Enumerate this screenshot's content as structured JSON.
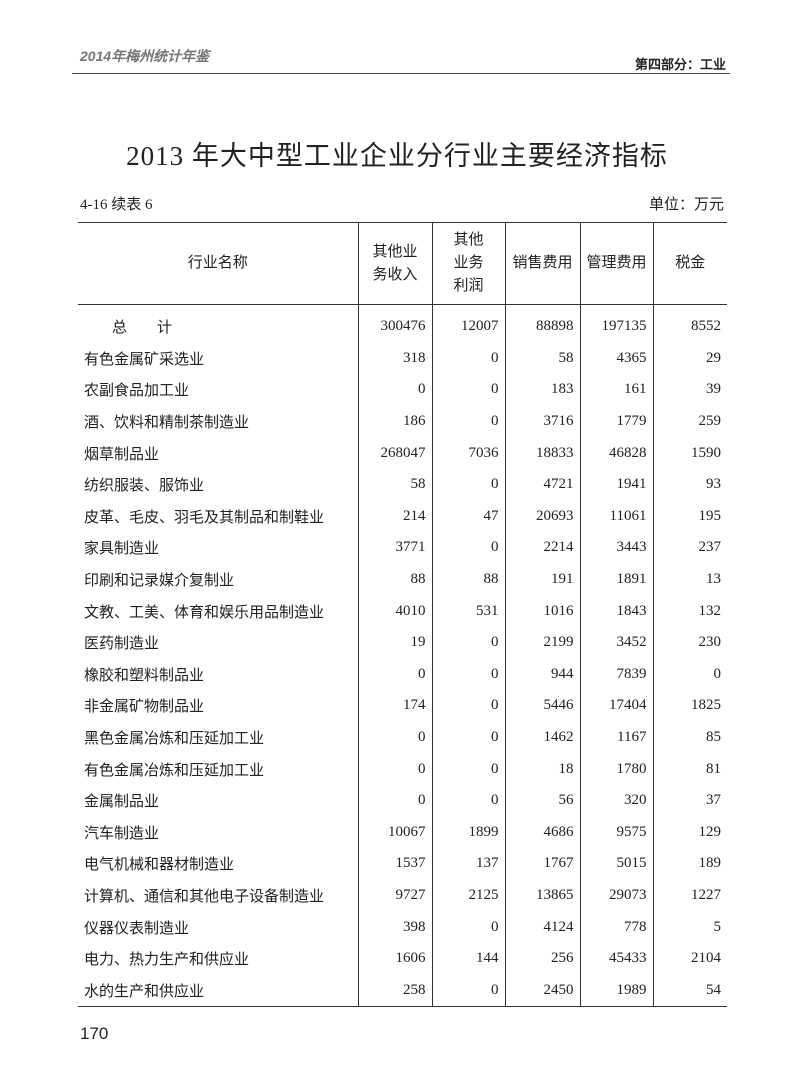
{
  "header": {
    "book": "2014年梅州统计年鉴",
    "section": "第四部分：工业"
  },
  "title": "2013 年大中型工业企业分行业主要经济指标",
  "subtitle": {
    "table_no": "4-16 续表 6",
    "unit": "单位：万元"
  },
  "table": {
    "columns": [
      "行业名称",
      "其他业务收入",
      "其他业务利润",
      "销售费用",
      "管理费用",
      "税金"
    ],
    "rows": [
      [
        "总　　计",
        300476,
        12007,
        88898,
        197135,
        8552
      ],
      [
        "有色金属矿采选业",
        318,
        0,
        58,
        4365,
        29
      ],
      [
        "农副食品加工业",
        0,
        0,
        183,
        161,
        39
      ],
      [
        "酒、饮料和精制茶制造业",
        186,
        0,
        3716,
        1779,
        259
      ],
      [
        "烟草制品业",
        268047,
        7036,
        18833,
        46828,
        1590
      ],
      [
        "纺织服装、服饰业",
        58,
        0,
        4721,
        1941,
        93
      ],
      [
        "皮革、毛皮、羽毛及其制品和制鞋业",
        214,
        47,
        20693,
        11061,
        195
      ],
      [
        "家具制造业",
        3771,
        0,
        2214,
        3443,
        237
      ],
      [
        "印刷和记录媒介复制业",
        88,
        88,
        191,
        1891,
        13
      ],
      [
        "文教、工美、体育和娱乐用品制造业",
        4010,
        531,
        1016,
        1843,
        132
      ],
      [
        "医药制造业",
        19,
        0,
        2199,
        3452,
        230
      ],
      [
        "橡胶和塑料制品业",
        0,
        0,
        944,
        7839,
        0
      ],
      [
        "非金属矿物制品业",
        174,
        0,
        5446,
        17404,
        1825
      ],
      [
        "黑色金属冶炼和压延加工业",
        0,
        0,
        1462,
        1167,
        85
      ],
      [
        "有色金属冶炼和压延加工业",
        0,
        0,
        18,
        1780,
        81
      ],
      [
        "金属制品业",
        0,
        0,
        56,
        320,
        37
      ],
      [
        "汽车制造业",
        10067,
        1899,
        4686,
        9575,
        129
      ],
      [
        "电气机械和器材制造业",
        1537,
        137,
        1767,
        5015,
        189
      ],
      [
        "计算机、通信和其他电子设备制造业",
        9727,
        2125,
        13865,
        29073,
        1227
      ],
      [
        "仪器仪表制造业",
        398,
        0,
        4124,
        778,
        5
      ],
      [
        "电力、热力生产和供应业",
        1606,
        144,
        256,
        45433,
        2104
      ],
      [
        "水的生产和供应业",
        258,
        0,
        2450,
        1989,
        54
      ]
    ]
  },
  "page_number": "170"
}
